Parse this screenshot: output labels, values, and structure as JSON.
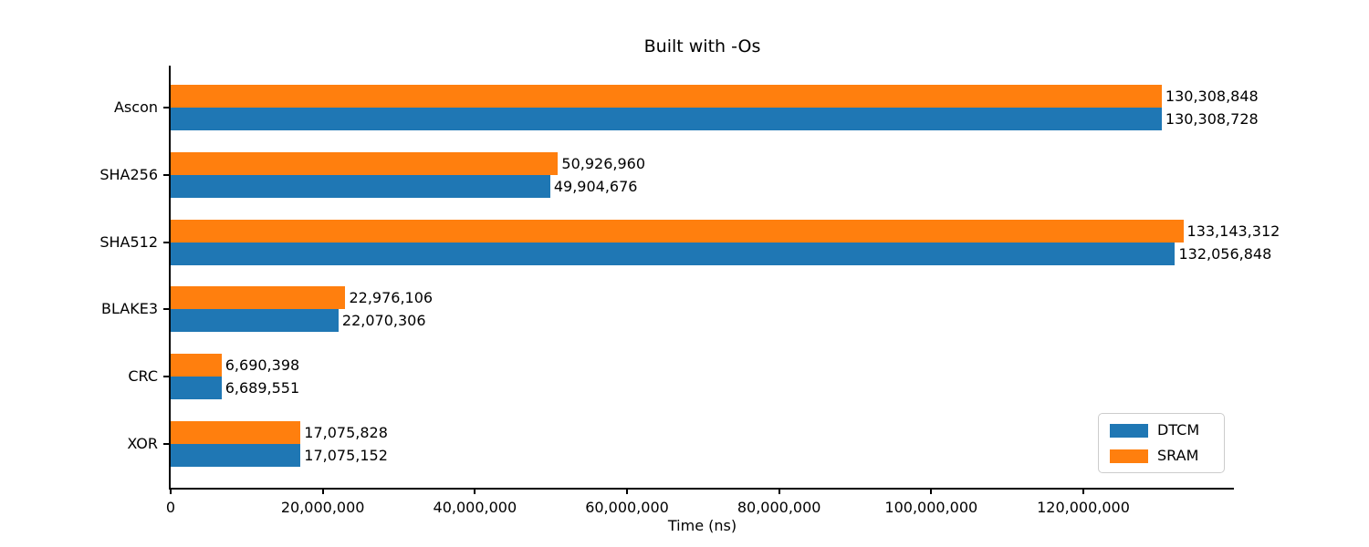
{
  "title": "Built with -Os",
  "xlabel": "Time (ns)",
  "legend": {
    "items": [
      {
        "label": "DTCM",
        "color": "#1f77b4"
      },
      {
        "label": "SRAM",
        "color": "#ff7f0e"
      }
    ]
  },
  "chart_data": {
    "type": "bar",
    "orientation": "horizontal",
    "title": "Built with -Os",
    "xlabel": "Time (ns)",
    "ylabel": "",
    "categories": [
      "Ascon",
      "SHA256",
      "SHA512",
      "BLAKE3",
      "CRC",
      "XOR"
    ],
    "series": [
      {
        "name": "DTCM",
        "color": "#1f77b4",
        "values": [
          130308728,
          49904676,
          132056848,
          22070306,
          6689551,
          17075152
        ],
        "value_labels": [
          "130,308,728",
          "49,904,676",
          "132,056,848",
          "22,070,306",
          "6,689,551",
          "17,075,152"
        ]
      },
      {
        "name": "SRAM",
        "color": "#ff7f0e",
        "values": [
          130308848,
          50926960,
          133143312,
          22976106,
          6690398,
          17075828
        ],
        "value_labels": [
          "130,308,848",
          "50,926,960",
          "133,143,312",
          "22,976,106",
          "6,690,398",
          "17,075,828"
        ]
      }
    ],
    "xlim": [
      0,
      139800000
    ],
    "xticks": [
      0,
      20000000,
      40000000,
      60000000,
      80000000,
      100000000,
      120000000
    ],
    "xtick_labels": [
      "0",
      "20,000,000",
      "40,000,000",
      "60,000,000",
      "80,000,000",
      "100,000,000",
      "120,000,000"
    ],
    "legend_position": "lower right",
    "grid": false,
    "bar_layout_note": "within each category: SRAM bar on top, DTCM bar below, value label at bar end"
  }
}
